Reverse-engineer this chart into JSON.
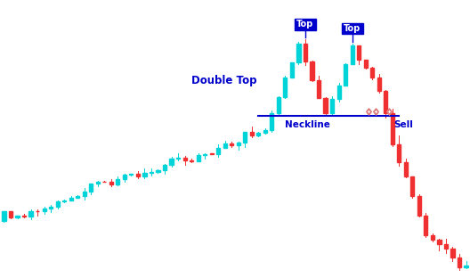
{
  "background_color": "#ffffff",
  "candle_up_color": "#00d4d8",
  "candle_down_color": "#f03030",
  "neckline_color": "#0000cc",
  "annotation_color": "#0000cc",
  "sell_arrow_color": "#e08080",
  "double_top_text": "Double Top",
  "neckline_text": "Neckline",
  "sell_text": "Sell",
  "top_text": "Top",
  "top_box_color": "#0000cc",
  "top_text_color": "#ffffff"
}
